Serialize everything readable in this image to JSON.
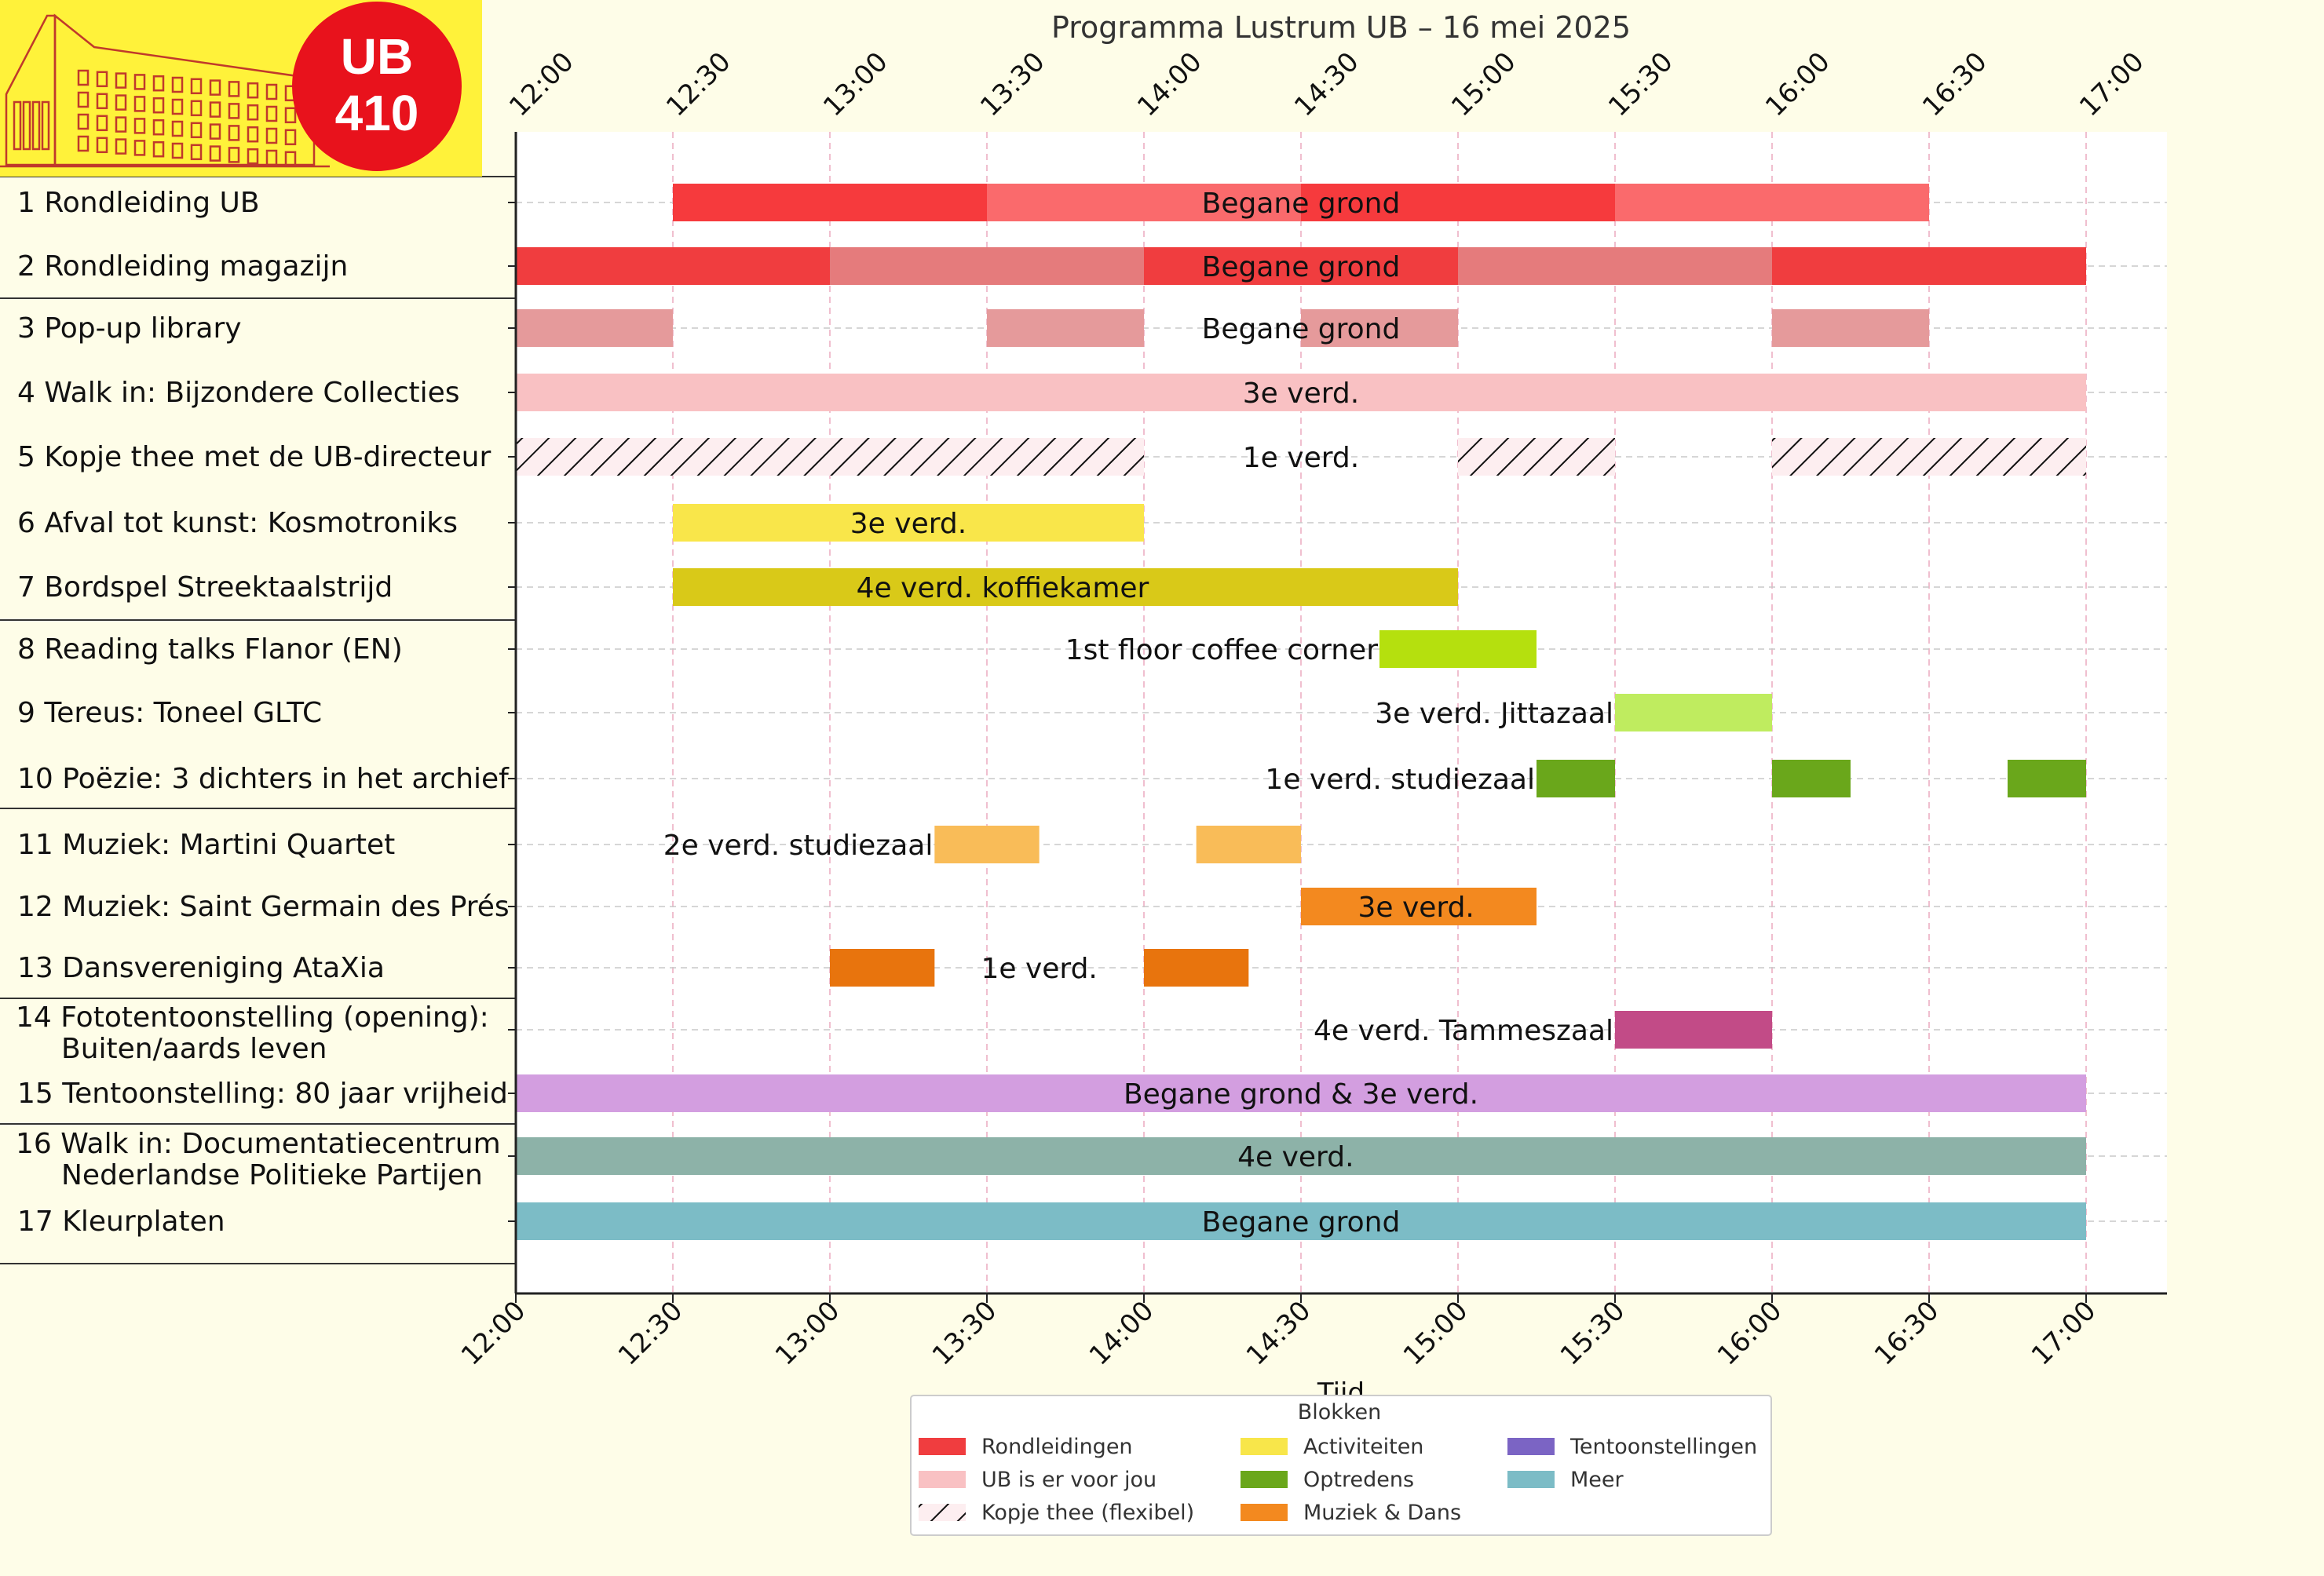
{
  "chart_data": {
    "type": "gantt",
    "title": "Programma Lustrum UB – 16 mei 2025",
    "xlabel": "Tijd",
    "ylabel": "",
    "x_ticks": [
      "12:00",
      "12:30",
      "13:00",
      "13:30",
      "14:00",
      "14:30",
      "15:00",
      "15:30",
      "16:00",
      "16:30",
      "17:00"
    ],
    "xlim": [
      "12:00",
      "17:00"
    ],
    "grid": true,
    "logo": {
      "text_top": "UB",
      "text_bottom": "410",
      "circle_color": "#e8121c",
      "background": "#fff23a"
    },
    "legend": {
      "title": "Blokken",
      "placement": "bottom-center",
      "entries": [
        {
          "label": "Rondleidingen",
          "color": "#f03d3f",
          "hatch": false
        },
        {
          "label": "UB is er voor jou",
          "color": "#f9c1c3",
          "hatch": false
        },
        {
          "label": "Kopje thee (flexibel)",
          "color": "#fdeef0",
          "hatch": true
        },
        {
          "label": "Activiteiten",
          "color": "#f8e64a",
          "hatch": false
        },
        {
          "label": "Optredens",
          "color": "#6aa71b",
          "hatch": false
        },
        {
          "label": "Muziek & Dans",
          "color": "#f3891f",
          "hatch": false
        },
        {
          "label": "Tentoonstellingen",
          "color": "#7b64c4",
          "hatch": false
        },
        {
          "label": "Meer",
          "color": "#7cbcc6",
          "hatch": false
        }
      ]
    },
    "rows": [
      {
        "name": "1 Rondleiding UB",
        "location": "Begane grond",
        "loc_at": "14:30",
        "loc_anchor": "middle",
        "bars": [
          {
            "start": "12:30",
            "end": "13:30",
            "color": "#f63a3d"
          },
          {
            "start": "13:30",
            "end": "14:30",
            "color": "#fa6a6c"
          },
          {
            "start": "14:30",
            "end": "15:30",
            "color": "#f63a3d"
          },
          {
            "start": "15:30",
            "end": "16:30",
            "color": "#fa6a6c"
          }
        ]
      },
      {
        "name": "2 Rondleiding magazijn",
        "location": "Begane grond",
        "loc_at": "14:30",
        "loc_anchor": "middle",
        "bars": [
          {
            "start": "12:00",
            "end": "13:00",
            "color": "#f03d3f"
          },
          {
            "start": "13:00",
            "end": "14:00",
            "color": "#e57b7c"
          },
          {
            "start": "14:00",
            "end": "15:00",
            "color": "#f03d3f"
          },
          {
            "start": "15:00",
            "end": "16:00",
            "color": "#e57b7c"
          },
          {
            "start": "16:00",
            "end": "17:00",
            "color": "#f03d3f"
          }
        ]
      },
      {
        "name": "3 Pop-up library",
        "location": "Begane grond",
        "loc_at": "14:30",
        "loc_anchor": "middle",
        "bars": [
          {
            "start": "12:00",
            "end": "12:30",
            "color": "#e59a9b"
          },
          {
            "start": "13:30",
            "end": "14:00",
            "color": "#e59a9b"
          },
          {
            "start": "14:30",
            "end": "15:00",
            "color": "#e59a9b"
          },
          {
            "start": "16:00",
            "end": "16:30",
            "color": "#e59a9b"
          }
        ]
      },
      {
        "name": "4 Walk in: Bijzondere Collecties",
        "location": "3e verd.",
        "loc_at": "14:30",
        "loc_anchor": "middle",
        "bars": [
          {
            "start": "12:00",
            "end": "17:00",
            "color": "#f9c1c3"
          }
        ]
      },
      {
        "name": "5 Kopje thee met de UB-directeur",
        "location": "1e verd.",
        "loc_at": "14:30",
        "loc_anchor": "middle",
        "bars": [
          {
            "start": "12:00",
            "end": "14:00",
            "color": "#fdeef0",
            "hatch": true
          },
          {
            "start": "15:00",
            "end": "15:30",
            "color": "#fdeef0",
            "hatch": true
          },
          {
            "start": "16:00",
            "end": "17:00",
            "color": "#fdeef0",
            "hatch": true
          }
        ]
      },
      {
        "name": "6 Afval tot kunst: Kosmotroniks",
        "location": "3e verd.",
        "loc_at": "13:15",
        "loc_anchor": "middle",
        "bars": [
          {
            "start": "12:30",
            "end": "14:00",
            "color": "#f9e64a"
          }
        ]
      },
      {
        "name": "7 Bordspel Streektaalstrijd",
        "location": "4e verd. koffiekamer",
        "loc_at": "13:33",
        "loc_anchor": "middle",
        "bars": [
          {
            "start": "12:30",
            "end": "15:00",
            "color": "#d9c918"
          }
        ]
      },
      {
        "name": "8 Reading talks Flanor (EN)",
        "location": "1st floor coffee corner",
        "loc_at": "14:45",
        "loc_anchor": "end",
        "bars": [
          {
            "start": "14:45",
            "end": "15:15",
            "color": "#b5e00e"
          }
        ]
      },
      {
        "name": "9 Tereus: Toneel GLTC",
        "location": "3e verd. Jittazaal",
        "loc_at": "15:30",
        "loc_anchor": "end",
        "bars": [
          {
            "start": "15:30",
            "end": "16:00",
            "color": "#bfec5f"
          }
        ]
      },
      {
        "name": "10 Poëzie: 3 dichters in het archief",
        "location": "1e verd. studiezaal",
        "loc_at": "15:15",
        "loc_anchor": "end",
        "bars": [
          {
            "start": "15:15",
            "end": "15:30",
            "color": "#6aa71b"
          },
          {
            "start": "16:00",
            "end": "16:15",
            "color": "#6aa71b"
          },
          {
            "start": "16:45",
            "end": "17:00",
            "color": "#6aa71b"
          }
        ]
      },
      {
        "name": "11 Muziek: Martini Quartet",
        "location": "2e verd. studiezaal",
        "loc_at": "13:20",
        "loc_anchor": "end",
        "bars": [
          {
            "start": "13:20",
            "end": "13:40",
            "color": "#f9bc58"
          },
          {
            "start": "14:10",
            "end": "14:30",
            "color": "#f9bc58"
          }
        ]
      },
      {
        "name": "12 Muziek: Saint Germain des Prés",
        "location": "3e verd.",
        "loc_at": "14:52",
        "loc_anchor": "middle",
        "bars": [
          {
            "start": "14:30",
            "end": "15:15",
            "color": "#f3891f"
          }
        ]
      },
      {
        "name": "13 Dansvereniging AtaXia",
        "location": "1e verd.",
        "loc_at": "13:40",
        "loc_anchor": "middle",
        "bars": [
          {
            "start": "13:00",
            "end": "13:20",
            "color": "#e8740d"
          },
          {
            "start": "14:00",
            "end": "14:20",
            "color": "#e8740d"
          }
        ]
      },
      {
        "name": "14 Fototentoonstelling (opening):",
        "name2": "Buiten/aards leven",
        "location": "4e verd. Tammeszaal",
        "loc_at": "15:30",
        "loc_anchor": "end",
        "bars": [
          {
            "start": "15:30",
            "end": "16:00",
            "color": "#c24b87"
          }
        ]
      },
      {
        "name": "15 Tentoonstelling: 80 jaar vrijheid",
        "location": "Begane grond & 3e verd.",
        "loc_at": "14:30",
        "loc_anchor": "middle",
        "bars": [
          {
            "start": "12:00",
            "end": "17:00",
            "color": "#d39ee0"
          }
        ]
      },
      {
        "name": "16 Walk in: Documentatiecentrum",
        "name2": "Nederlandse Politieke Partijen",
        "location": "4e verd.",
        "loc_at": "14:29",
        "loc_anchor": "middle",
        "bars": [
          {
            "start": "12:00",
            "end": "17:00",
            "color": "#8db2a8"
          }
        ]
      },
      {
        "name": "17 Kleurplaten",
        "location": "Begane grond",
        "loc_at": "14:30",
        "loc_anchor": "middle",
        "bars": [
          {
            "start": "12:00",
            "end": "17:00",
            "color": "#7cbcc6"
          }
        ]
      }
    ]
  }
}
